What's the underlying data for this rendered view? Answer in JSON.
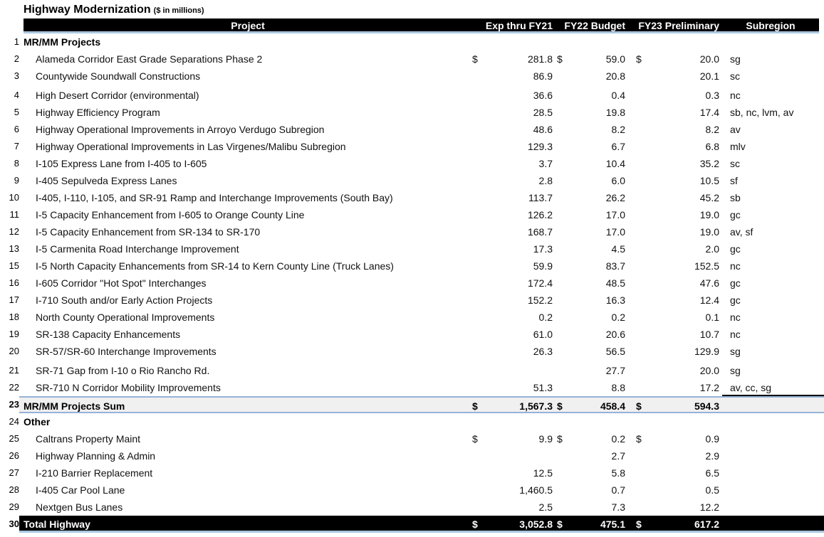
{
  "title": {
    "main": "Highway Modernization",
    "unit": "($ in millions)"
  },
  "columns": {
    "project": "Project",
    "exp": "Exp thru FY21",
    "fy22": "FY22 Budget",
    "fy23": "FY23 Preliminary",
    "subregion": "Subregion"
  },
  "rows": [
    {
      "n": "1",
      "type": "group",
      "name": "MR/MM Projects"
    },
    {
      "n": "2",
      "type": "item",
      "name": "Alameda Corridor East Grade Separations Phase 2",
      "cur": "$",
      "exp": "281.8",
      "fy22": "59.0",
      "fy23": "20.0",
      "sub": "sg"
    },
    {
      "n": "3",
      "type": "item",
      "name": "Countywide Soundwall Constructions",
      "exp": "86.9",
      "fy22": "20.8",
      "fy23": "20.1",
      "sub": "sc"
    },
    {
      "n": "4",
      "type": "item",
      "gap": true,
      "name": "High Desert Corridor (environmental)",
      "exp": "36.6",
      "fy22": "0.4",
      "fy23": "0.3",
      "sub": "nc"
    },
    {
      "n": "5",
      "type": "item",
      "name": "Highway Efficiency Program",
      "exp": "28.5",
      "fy22": "19.8",
      "fy23": "17.4",
      "sub": "sb, nc, lvm, av"
    },
    {
      "n": "6",
      "type": "item",
      "name": "Highway Operational Improvements in Arroyo Verdugo Subregion",
      "exp": "48.6",
      "fy22": "8.2",
      "fy23": "8.2",
      "sub": "av"
    },
    {
      "n": "7",
      "type": "item",
      "name": "Highway Operational Improvements in Las Virgenes/Malibu Subregion",
      "exp": "129.3",
      "fy22": "6.7",
      "fy23": "6.8",
      "sub": "mlv"
    },
    {
      "n": "8",
      "type": "item",
      "name": "I-105 Express Lane from I-405 to I-605",
      "exp": "3.7",
      "fy22": "10.4",
      "fy23": "35.2",
      "sub": "sc"
    },
    {
      "n": "9",
      "type": "item",
      "name": "I-405 Sepulveda Express Lanes",
      "exp": "2.8",
      "fy22": "6.0",
      "fy23": "10.5",
      "sub": "sf"
    },
    {
      "n": "10",
      "type": "item",
      "name": "I-405, I-110, I-105, and SR-91 Ramp and Interchange Improvements (South Bay)",
      "exp": "113.7",
      "fy22": "26.2",
      "fy23": "45.2",
      "sub": "sb"
    },
    {
      "n": "11",
      "type": "item",
      "name": "I-5 Capacity Enhancement from I-605 to Orange County Line",
      "exp": "126.2",
      "fy22": "17.0",
      "fy23": "19.0",
      "sub": "gc"
    },
    {
      "n": "12",
      "type": "item",
      "name": "I-5 Capacity Enhancement from SR-134 to SR-170",
      "exp": "168.7",
      "fy22": "17.0",
      "fy23": "19.0",
      "sub": "av, sf"
    },
    {
      "n": "13",
      "type": "item",
      "name": "I-5 Carmenita Road Interchange Improvement",
      "exp": "17.3",
      "fy22": "4.5",
      "fy23": "2.0",
      "sub": "gc"
    },
    {
      "n": "15",
      "type": "item",
      "name": "I-5 North Capacity Enhancements from SR-14 to Kern County Line (Truck Lanes)",
      "exp": "59.9",
      "fy22": "83.7",
      "fy23": "152.5",
      "sub": "nc"
    },
    {
      "n": "16",
      "type": "item",
      "name": "I-605 Corridor \"Hot Spot\" Interchanges",
      "exp": "172.4",
      "fy22": "48.5",
      "fy23": "47.6",
      "sub": "gc"
    },
    {
      "n": "17",
      "type": "item",
      "name": "I-710 South and/or Early Action Projects",
      "exp": "152.2",
      "fy22": "16.3",
      "fy23": "12.4",
      "sub": "gc"
    },
    {
      "n": "18",
      "type": "item",
      "name": "North County Operational Improvements",
      "exp": "0.2",
      "fy22": "0.2",
      "fy23": "0.1",
      "sub": "nc"
    },
    {
      "n": "19",
      "type": "item",
      "name": "SR-138 Capacity Enhancements",
      "exp": "61.0",
      "fy22": "20.6",
      "fy23": "10.7",
      "sub": "nc"
    },
    {
      "n": "20",
      "type": "item",
      "name": "SR-57/SR-60 Interchange Improvements",
      "exp": "26.3",
      "fy22": "56.5",
      "fy23": "129.9",
      "sub": "sg"
    },
    {
      "n": "21",
      "type": "item",
      "gap": true,
      "name": "SR-71 Gap from I-10 o Rio Rancho Rd.",
      "exp": "",
      "fy22": "27.7",
      "fy23": "20.0",
      "sub": "sg"
    },
    {
      "n": "22",
      "type": "item",
      "name": "SR-710 N Corridor Mobility Improvements",
      "exp": "51.3",
      "fy22": "8.8",
      "fy23": "17.2",
      "sub": "av, cc, sg",
      "sub_rule": true
    },
    {
      "n": "23",
      "type": "sum",
      "name": "MR/MM Projects Sum",
      "cur": "$",
      "exp": "1,567.3",
      "fy22": "458.4",
      "fy23": "594.3"
    },
    {
      "n": "24",
      "type": "group",
      "name": "Other"
    },
    {
      "n": "25",
      "type": "item",
      "name": "Caltrans Property Maint",
      "cur": "$",
      "exp": "9.9",
      "fy22": "0.2",
      "fy23": "0.9"
    },
    {
      "n": "26",
      "type": "item",
      "name": "Highway Planning & Admin",
      "exp": "",
      "fy22": "2.7",
      "fy23": "2.9"
    },
    {
      "n": "27",
      "type": "item",
      "name": "I-210 Barrier Replacement",
      "exp": "12.5",
      "fy22": "5.8",
      "fy23": "6.5"
    },
    {
      "n": "28",
      "type": "item",
      "name": "I-405 Car Pool Lane",
      "exp": "1,460.5",
      "fy22": "0.7",
      "fy23": "0.5"
    },
    {
      "n": "29",
      "type": "item",
      "name": "Nextgen Bus Lanes",
      "exp": "2.5",
      "fy22": "7.3",
      "fy23": "12.2"
    },
    {
      "n": "30",
      "type": "total",
      "name": "Total Highway",
      "cur": "$",
      "exp": "3,052.8",
      "fy22": "475.1",
      "fy23": "617.2"
    }
  ]
}
